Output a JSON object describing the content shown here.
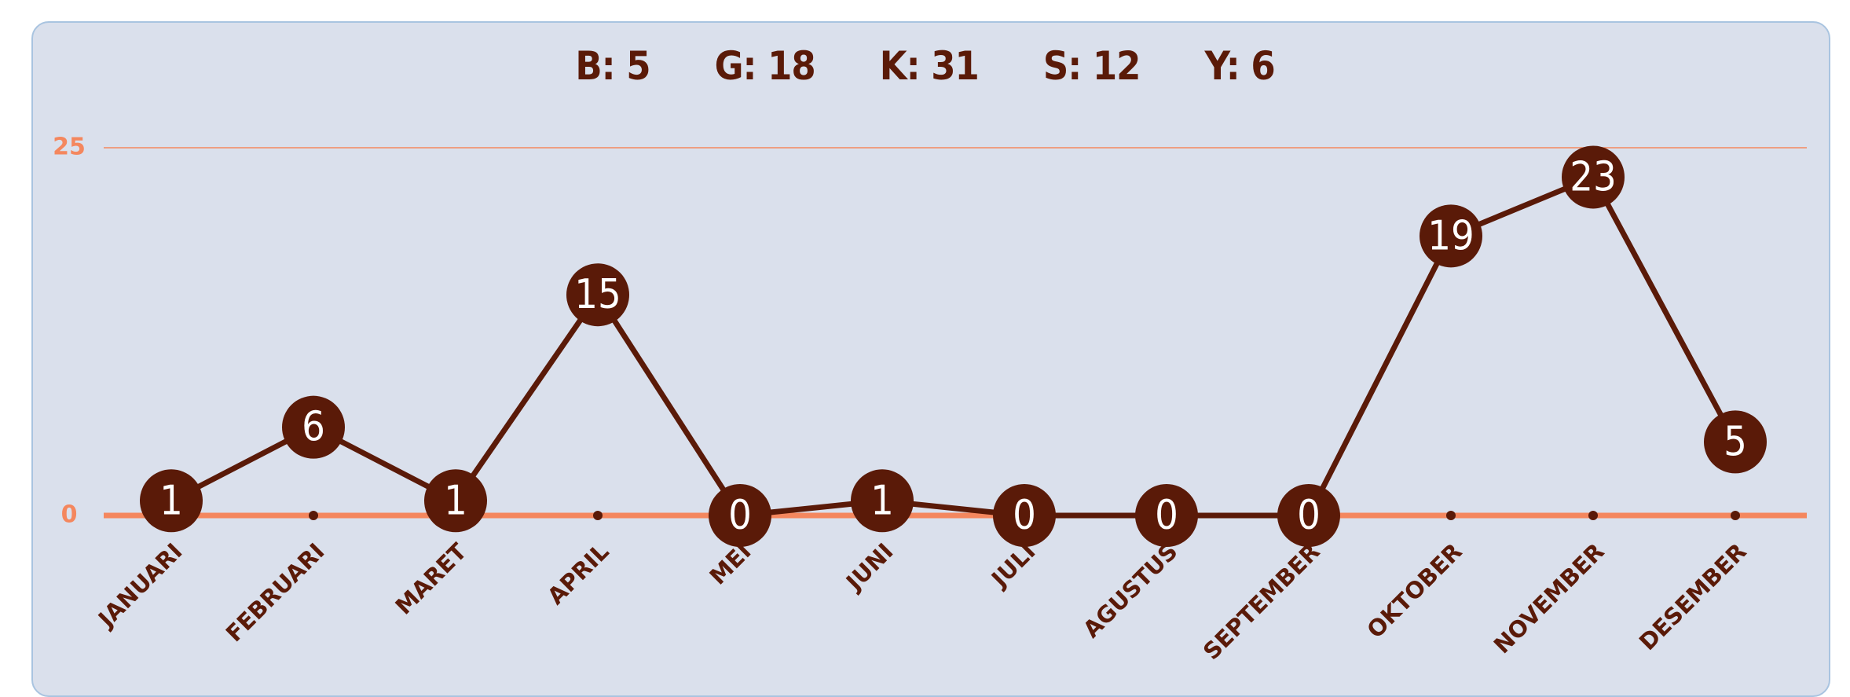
{
  "chart_data": {
    "type": "line",
    "header": [
      "B: 5",
      "G: 18",
      "K: 31",
      "S: 12",
      "Y: 6"
    ],
    "categories": [
      "JANUARI",
      "FEBRUARI",
      "MARET",
      "APRIL",
      "MEI",
      "JUNI",
      "JULI",
      "AGUSTUS",
      "SEPTEMBER",
      "OKTOBER",
      "NOVEMBER",
      "DESEMBER"
    ],
    "values": [
      1,
      6,
      1,
      15,
      0,
      1,
      0,
      0,
      0,
      19,
      23,
      5
    ],
    "color": "#5a1a08",
    "axis_color": "#f4875e",
    "ylim": [
      0,
      25
    ],
    "yticks": [
      0,
      25
    ],
    "grid": true
  }
}
